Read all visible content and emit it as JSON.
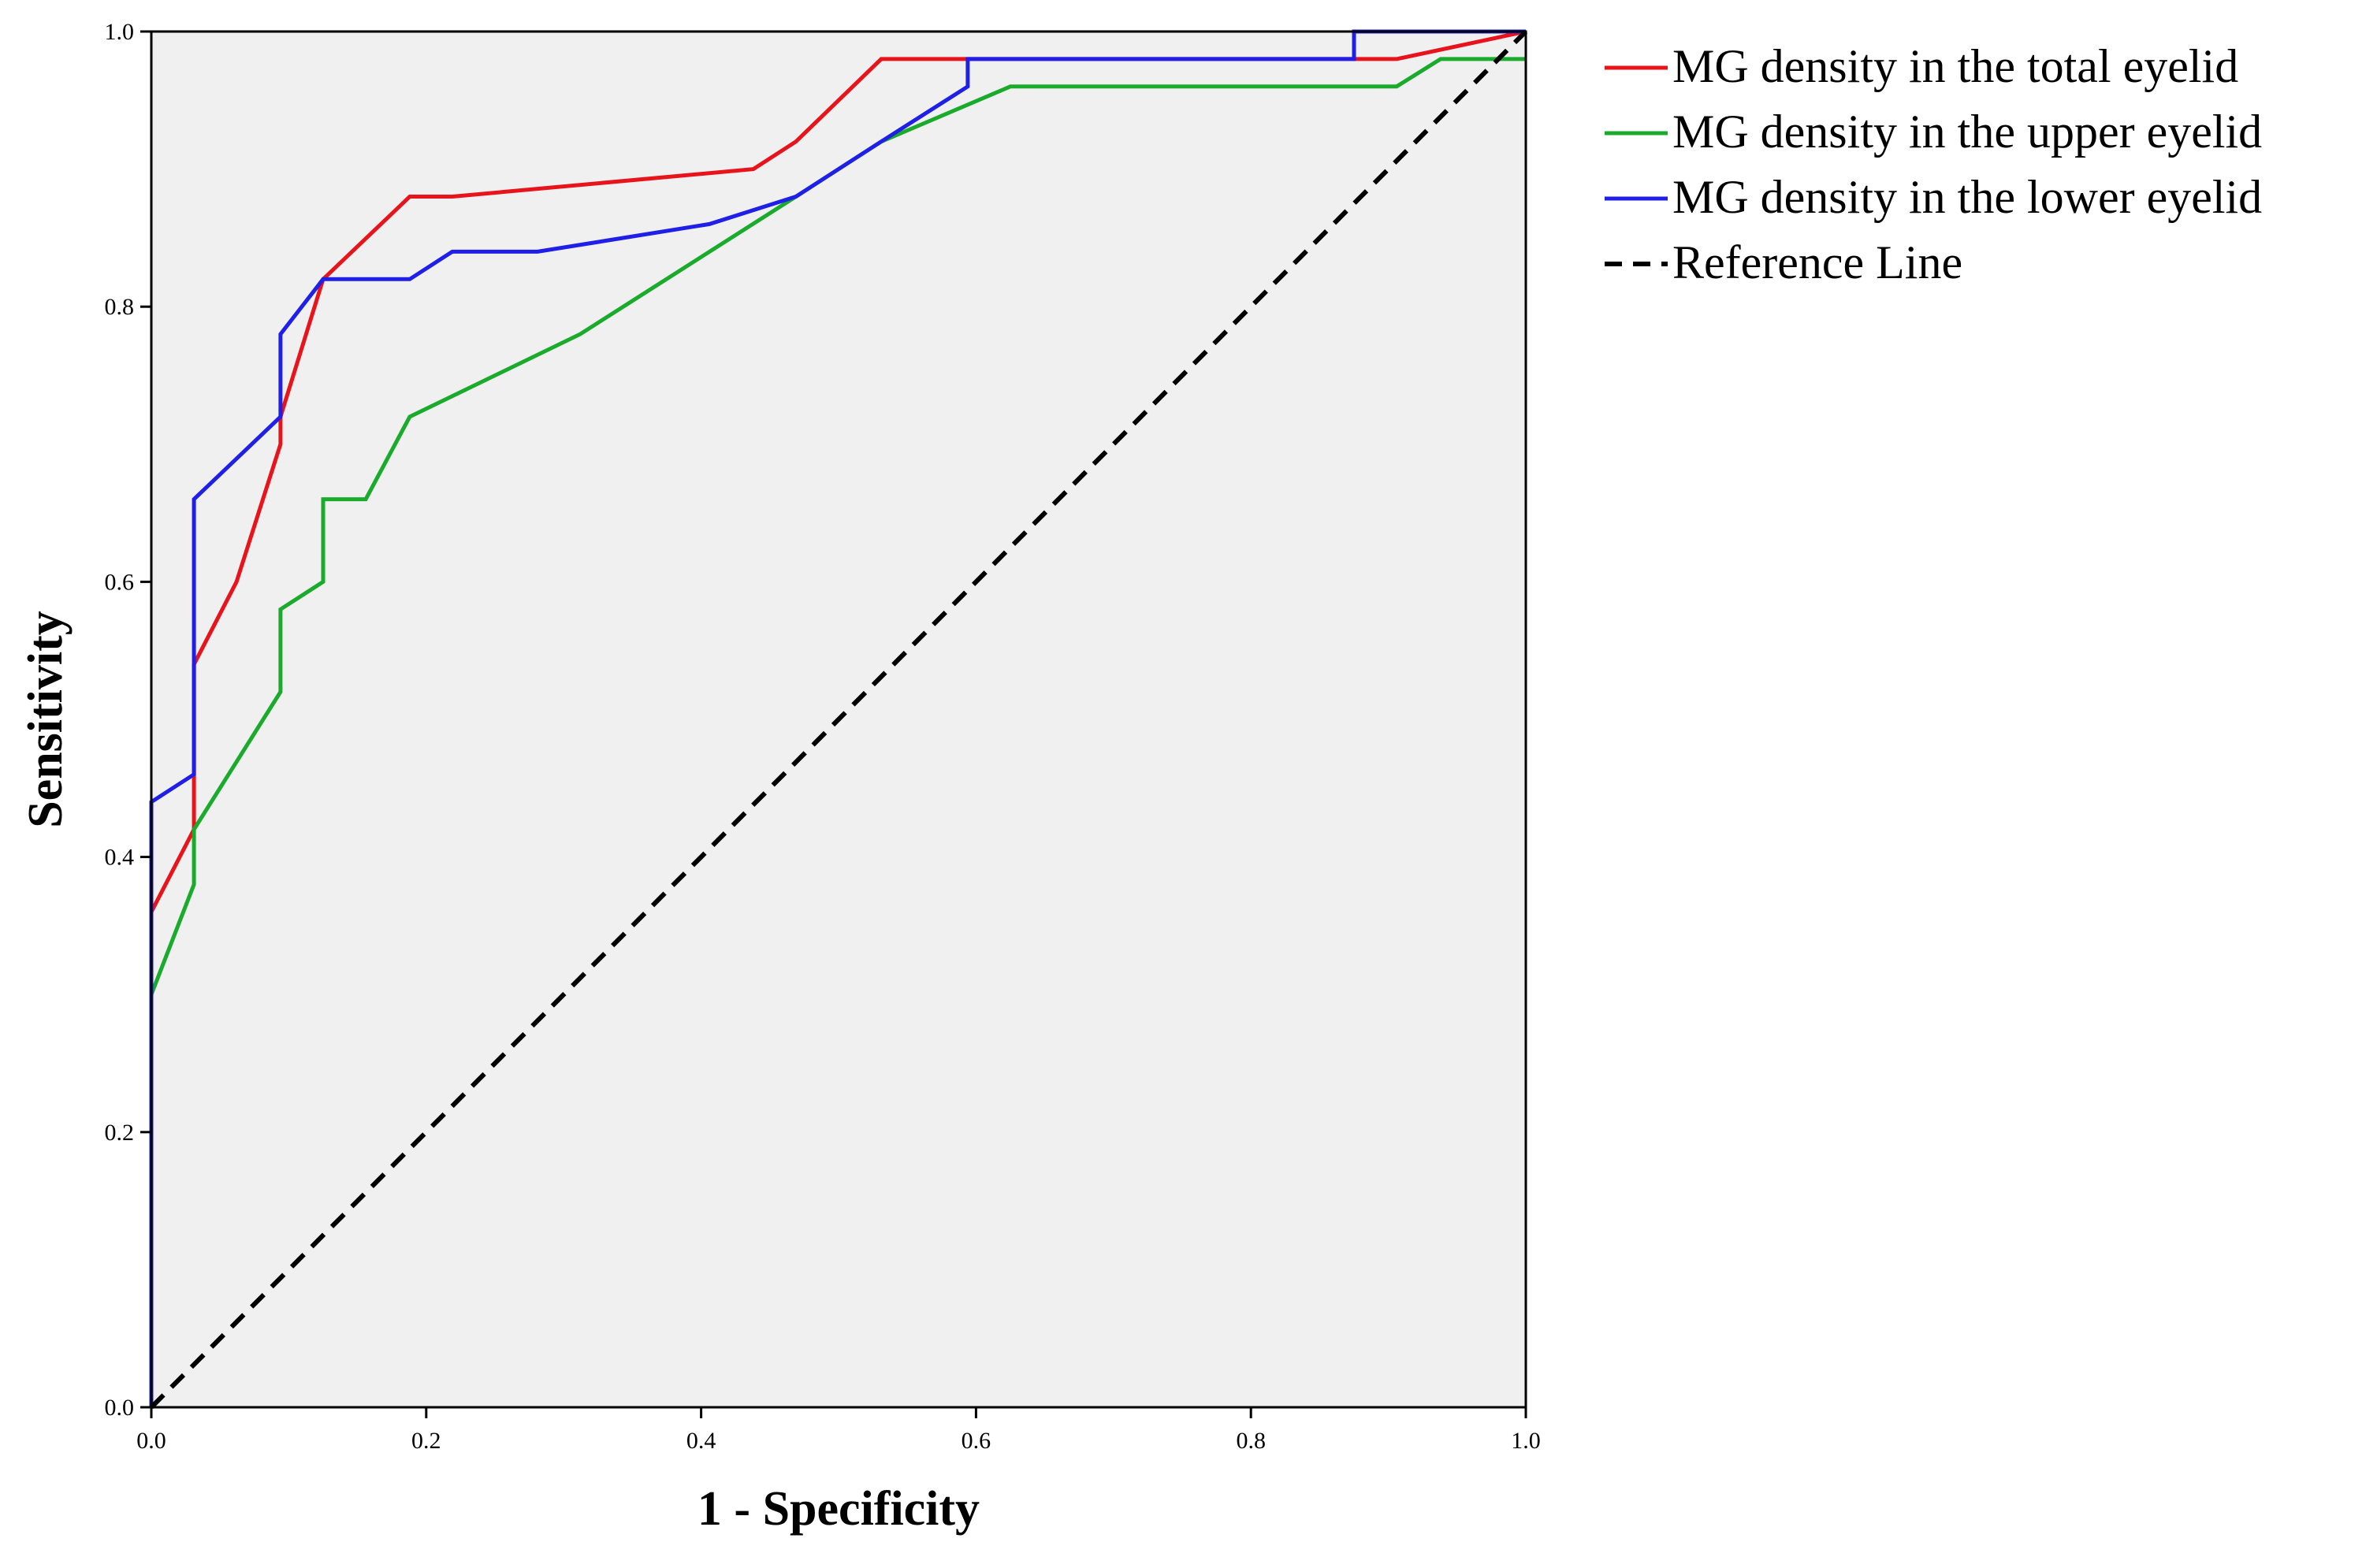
{
  "chart_data": {
    "type": "line",
    "title": "",
    "xlabel": "1 - Specificity",
    "ylabel": "Sensitivity",
    "xlim": [
      0,
      1
    ],
    "ylim": [
      0,
      1
    ],
    "x_ticks": [
      "0.0",
      "0.2",
      "0.4",
      "0.6",
      "0.8",
      "1.0"
    ],
    "y_ticks": [
      "0.0",
      "0.2",
      "0.4",
      "0.6",
      "0.8",
      "1.0"
    ],
    "grid": false,
    "plot_background": "#f0f0f0",
    "legend_position": "top-right, outside plot",
    "series": [
      {
        "name": "MG density in the total eyelid",
        "color": "#e8141b",
        "dash": "solid",
        "points": [
          [
            0,
            0
          ],
          [
            0,
            0.36
          ],
          [
            0.031,
            0.42
          ],
          [
            0.031,
            0.54
          ],
          [
            0.062,
            0.6
          ],
          [
            0.094,
            0.7
          ],
          [
            0.094,
            0.72
          ],
          [
            0.125,
            0.82
          ],
          [
            0.188,
            0.88
          ],
          [
            0.219,
            0.88
          ],
          [
            0.438,
            0.9
          ],
          [
            0.469,
            0.92
          ],
          [
            0.531,
            0.98
          ],
          [
            0.906,
            0.98
          ],
          [
            1,
            1
          ]
        ]
      },
      {
        "name": "MG density in the upper eyelid",
        "color": "#1aab2c",
        "dash": "solid",
        "points": [
          [
            0,
            0
          ],
          [
            0,
            0.3
          ],
          [
            0.031,
            0.38
          ],
          [
            0.031,
            0.42
          ],
          [
            0.094,
            0.52
          ],
          [
            0.094,
            0.58
          ],
          [
            0.125,
            0.6
          ],
          [
            0.125,
            0.66
          ],
          [
            0.156,
            0.66
          ],
          [
            0.188,
            0.72
          ],
          [
            0.312,
            0.78
          ],
          [
            0.469,
            0.88
          ],
          [
            0.531,
            0.92
          ],
          [
            0.625,
            0.96
          ],
          [
            0.906,
            0.96
          ],
          [
            0.938,
            0.98
          ],
          [
            1,
            0.98
          ]
        ]
      },
      {
        "name": "MG density in the lower eyelid",
        "color": "#1f1fe8",
        "dash": "solid",
        "points": [
          [
            0,
            0
          ],
          [
            0,
            0.44
          ],
          [
            0.031,
            0.46
          ],
          [
            0.031,
            0.66
          ],
          [
            0.094,
            0.72
          ],
          [
            0.094,
            0.78
          ],
          [
            0.125,
            0.82
          ],
          [
            0.188,
            0.82
          ],
          [
            0.219,
            0.84
          ],
          [
            0.281,
            0.84
          ],
          [
            0.406,
            0.86
          ],
          [
            0.469,
            0.88
          ],
          [
            0.531,
            0.92
          ],
          [
            0.594,
            0.96
          ],
          [
            0.594,
            0.98
          ],
          [
            0.875,
            0.98
          ],
          [
            0.875,
            1
          ],
          [
            1,
            1
          ]
        ]
      },
      {
        "name": "Reference Line",
        "color": "#000000",
        "dash": "dashed",
        "points": [
          [
            0,
            0
          ],
          [
            1,
            1
          ]
        ]
      }
    ]
  }
}
